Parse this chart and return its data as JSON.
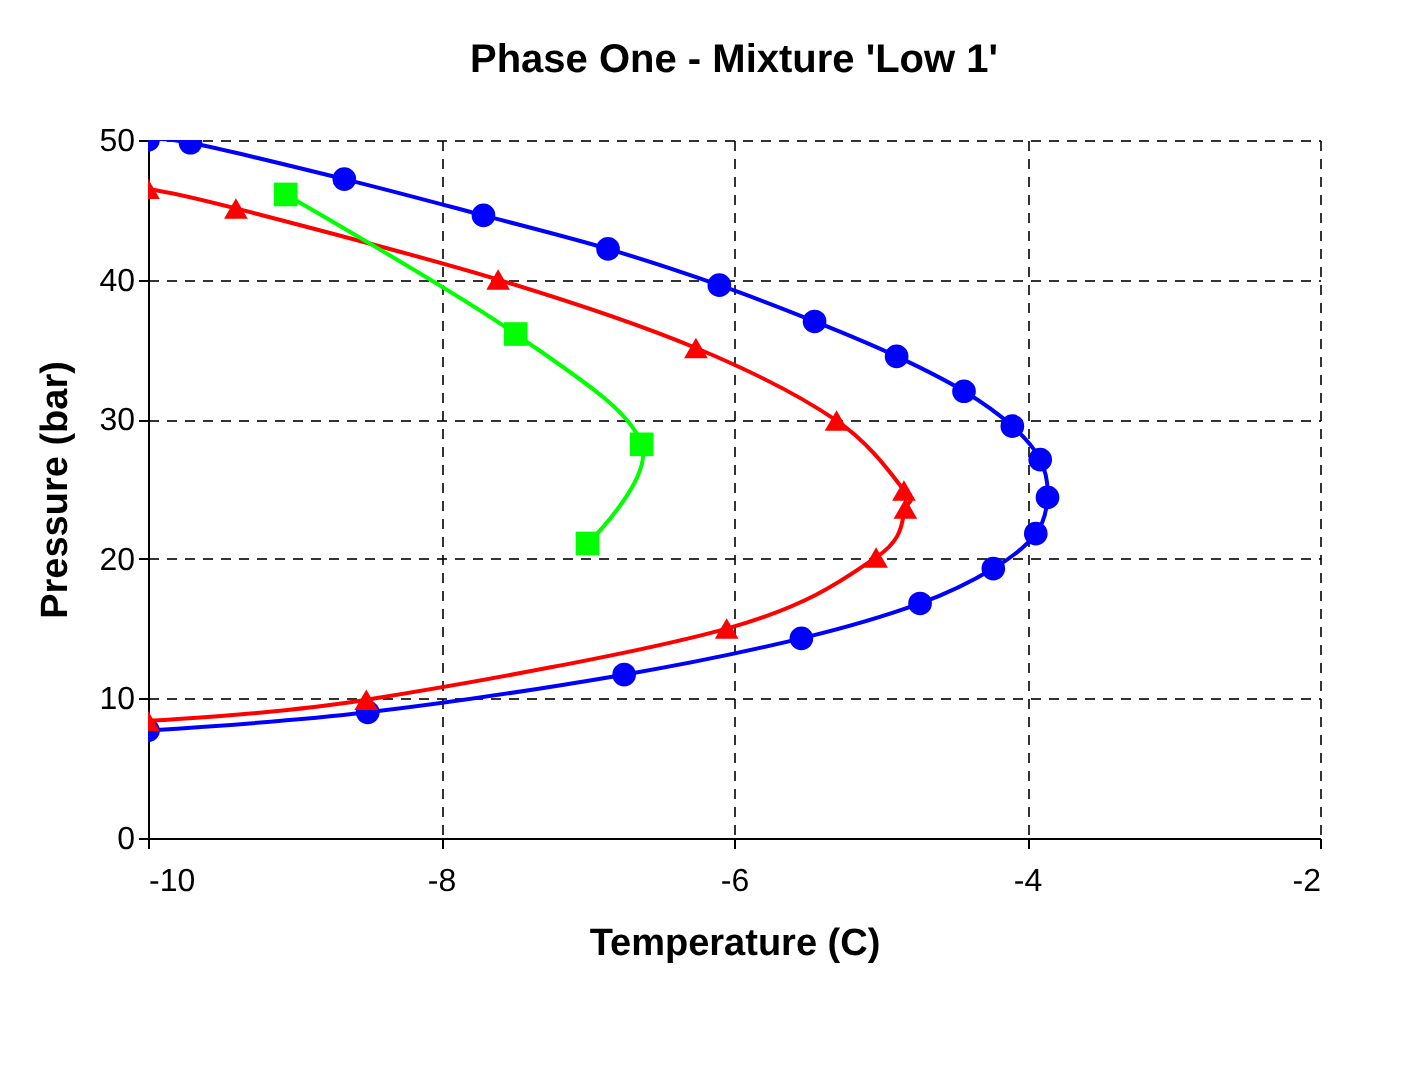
{
  "chart_data": {
    "type": "line",
    "title": "Phase One - Mixture 'Low 1'",
    "xlabel": "Temperature (C)",
    "ylabel": "Pressure (bar)",
    "xlim": [
      -10,
      -2
    ],
    "xticks": [
      -10,
      -8,
      -6,
      -4,
      -2
    ],
    "ylim": [
      0,
      50
    ],
    "yticks": [
      0,
      10,
      20,
      30,
      40,
      50
    ],
    "grid": true,
    "line_style": "solid",
    "series": [
      {
        "color": "#0000ff",
        "marker": "circle",
        "x": [
          -10,
          -9.71,
          -8.66,
          -7.71,
          -6.86,
          -6.1,
          -5.45,
          -4.89,
          -4.43,
          -4.1,
          -3.91,
          -3.86,
          -3.94,
          -4.23,
          -4.73,
          -5.54,
          -6.75,
          -8.5,
          -10
        ],
        "values": [
          50,
          49.8,
          47.2,
          44.6,
          42.2,
          39.6,
          37.0,
          34.5,
          32.0,
          29.5,
          27.1,
          24.4,
          21.8,
          19.3,
          16.8,
          14.3,
          11.7,
          9.0,
          7.7
        ]
      },
      {
        "color": "#ff0000",
        "marker": "triangle",
        "x": [
          -10,
          -9.4,
          -7.61,
          -6.26,
          -5.3,
          -4.84,
          -4.83,
          -5.03,
          -6.05,
          -8.51,
          -10
        ],
        "values": [
          46.5,
          45.1,
          40.0,
          35.1,
          29.9,
          24.9,
          23.6,
          20.1,
          15.0,
          9.9,
          8.4
        ]
      },
      {
        "color": "#00ff00",
        "marker": "square",
        "x": [
          -9.06,
          -7.49,
          -6.63,
          -7.0
        ],
        "values": [
          46.1,
          36.1,
          28.2,
          21.1
        ]
      }
    ]
  }
}
